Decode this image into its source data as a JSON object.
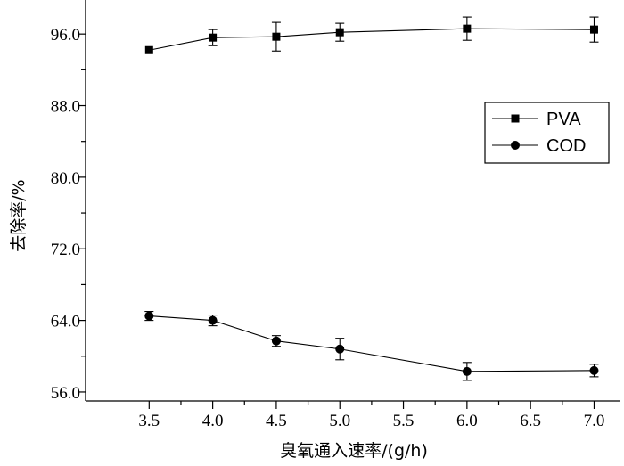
{
  "chart_data": {
    "type": "line",
    "title": "",
    "xlabel": "臭氧通入速率/(g/h)",
    "ylabel": "去除率/%",
    "xlim": [
      3.0,
      7.2
    ],
    "ylim": [
      55.0,
      99.8
    ],
    "x_ticks": [
      "3.5",
      "4.0",
      "4.5",
      "5.0",
      "5.5",
      "6.0",
      "6.5",
      "7.0"
    ],
    "y_ticks": [
      "56.0",
      "64.0",
      "72.0",
      "80.0",
      "88.0",
      "96.0"
    ],
    "legend_position": "upper-right",
    "grid": false,
    "x": [
      3.5,
      4.0,
      4.5,
      5.0,
      6.0,
      7.0
    ],
    "series": [
      {
        "name": "PVA",
        "marker": "square",
        "values": [
          94.2,
          95.6,
          95.7,
          96.2,
          96.6,
          96.5
        ],
        "errors": [
          0.0,
          0.9,
          1.6,
          1.0,
          1.3,
          1.4
        ]
      },
      {
        "name": "COD",
        "marker": "circle",
        "values": [
          64.5,
          64.0,
          61.7,
          60.8,
          58.3,
          58.4
        ],
        "errors": [
          0.5,
          0.6,
          0.6,
          1.2,
          1.0,
          0.7
        ]
      }
    ]
  }
}
